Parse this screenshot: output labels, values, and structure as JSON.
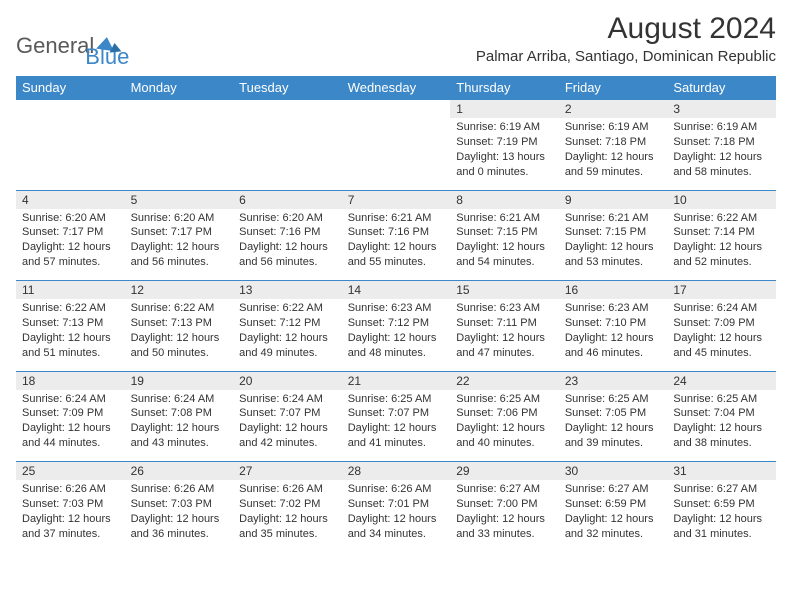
{
  "brand": {
    "part1": "General",
    "part2": "Blue"
  },
  "title": "August 2024",
  "location": "Palmar Arriba, Santiago, Dominican Republic",
  "colors": {
    "header_bg": "#3b87c8",
    "header_text": "#ffffff",
    "daynum_bg": "#ececec",
    "border": "#3b87c8",
    "text": "#333333",
    "logo_gray": "#5a5a5a",
    "logo_blue": "#3b87c8"
  },
  "typography": {
    "title_fontsize": 30,
    "location_fontsize": 15,
    "dayheader_fontsize": 13,
    "daynum_fontsize": 12,
    "body_fontsize": 11
  },
  "day_headers": [
    "Sunday",
    "Monday",
    "Tuesday",
    "Wednesday",
    "Thursday",
    "Friday",
    "Saturday"
  ],
  "weeks": [
    [
      null,
      null,
      null,
      null,
      {
        "n": "1",
        "sr": "6:19 AM",
        "ss": "7:19 PM",
        "dl": "13 hours and 0 minutes."
      },
      {
        "n": "2",
        "sr": "6:19 AM",
        "ss": "7:18 PM",
        "dl": "12 hours and 59 minutes."
      },
      {
        "n": "3",
        "sr": "6:19 AM",
        "ss": "7:18 PM",
        "dl": "12 hours and 58 minutes."
      }
    ],
    [
      {
        "n": "4",
        "sr": "6:20 AM",
        "ss": "7:17 PM",
        "dl": "12 hours and 57 minutes."
      },
      {
        "n": "5",
        "sr": "6:20 AM",
        "ss": "7:17 PM",
        "dl": "12 hours and 56 minutes."
      },
      {
        "n": "6",
        "sr": "6:20 AM",
        "ss": "7:16 PM",
        "dl": "12 hours and 56 minutes."
      },
      {
        "n": "7",
        "sr": "6:21 AM",
        "ss": "7:16 PM",
        "dl": "12 hours and 55 minutes."
      },
      {
        "n": "8",
        "sr": "6:21 AM",
        "ss": "7:15 PM",
        "dl": "12 hours and 54 minutes."
      },
      {
        "n": "9",
        "sr": "6:21 AM",
        "ss": "7:15 PM",
        "dl": "12 hours and 53 minutes."
      },
      {
        "n": "10",
        "sr": "6:22 AM",
        "ss": "7:14 PM",
        "dl": "12 hours and 52 minutes."
      }
    ],
    [
      {
        "n": "11",
        "sr": "6:22 AM",
        "ss": "7:13 PM",
        "dl": "12 hours and 51 minutes."
      },
      {
        "n": "12",
        "sr": "6:22 AM",
        "ss": "7:13 PM",
        "dl": "12 hours and 50 minutes."
      },
      {
        "n": "13",
        "sr": "6:22 AM",
        "ss": "7:12 PM",
        "dl": "12 hours and 49 minutes."
      },
      {
        "n": "14",
        "sr": "6:23 AM",
        "ss": "7:12 PM",
        "dl": "12 hours and 48 minutes."
      },
      {
        "n": "15",
        "sr": "6:23 AM",
        "ss": "7:11 PM",
        "dl": "12 hours and 47 minutes."
      },
      {
        "n": "16",
        "sr": "6:23 AM",
        "ss": "7:10 PM",
        "dl": "12 hours and 46 minutes."
      },
      {
        "n": "17",
        "sr": "6:24 AM",
        "ss": "7:09 PM",
        "dl": "12 hours and 45 minutes."
      }
    ],
    [
      {
        "n": "18",
        "sr": "6:24 AM",
        "ss": "7:09 PM",
        "dl": "12 hours and 44 minutes."
      },
      {
        "n": "19",
        "sr": "6:24 AM",
        "ss": "7:08 PM",
        "dl": "12 hours and 43 minutes."
      },
      {
        "n": "20",
        "sr": "6:24 AM",
        "ss": "7:07 PM",
        "dl": "12 hours and 42 minutes."
      },
      {
        "n": "21",
        "sr": "6:25 AM",
        "ss": "7:07 PM",
        "dl": "12 hours and 41 minutes."
      },
      {
        "n": "22",
        "sr": "6:25 AM",
        "ss": "7:06 PM",
        "dl": "12 hours and 40 minutes."
      },
      {
        "n": "23",
        "sr": "6:25 AM",
        "ss": "7:05 PM",
        "dl": "12 hours and 39 minutes."
      },
      {
        "n": "24",
        "sr": "6:25 AM",
        "ss": "7:04 PM",
        "dl": "12 hours and 38 minutes."
      }
    ],
    [
      {
        "n": "25",
        "sr": "6:26 AM",
        "ss": "7:03 PM",
        "dl": "12 hours and 37 minutes."
      },
      {
        "n": "26",
        "sr": "6:26 AM",
        "ss": "7:03 PM",
        "dl": "12 hours and 36 minutes."
      },
      {
        "n": "27",
        "sr": "6:26 AM",
        "ss": "7:02 PM",
        "dl": "12 hours and 35 minutes."
      },
      {
        "n": "28",
        "sr": "6:26 AM",
        "ss": "7:01 PM",
        "dl": "12 hours and 34 minutes."
      },
      {
        "n": "29",
        "sr": "6:27 AM",
        "ss": "7:00 PM",
        "dl": "12 hours and 33 minutes."
      },
      {
        "n": "30",
        "sr": "6:27 AM",
        "ss": "6:59 PM",
        "dl": "12 hours and 32 minutes."
      },
      {
        "n": "31",
        "sr": "6:27 AM",
        "ss": "6:59 PM",
        "dl": "12 hours and 31 minutes."
      }
    ]
  ],
  "labels": {
    "sunrise": "Sunrise:",
    "sunset": "Sunset:",
    "daylight": "Daylight:"
  }
}
